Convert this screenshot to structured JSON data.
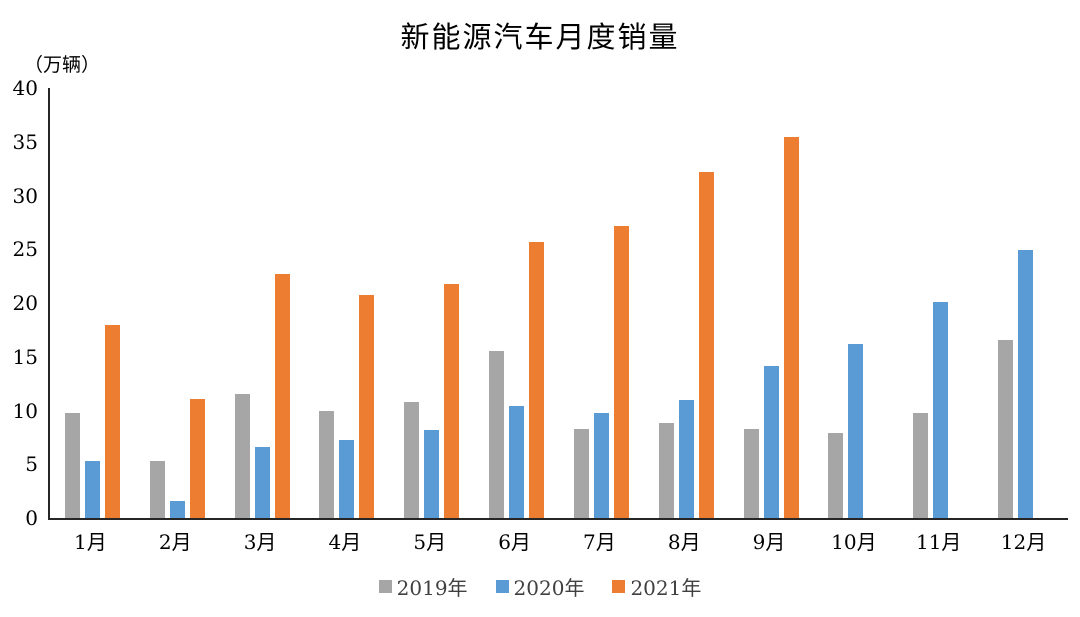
{
  "title": "新能源汽车月度销量",
  "y_axis": {
    "unit_label": "（万辆）",
    "ticks": [
      40,
      35,
      30,
      25,
      20,
      15,
      10,
      5,
      0
    ]
  },
  "colors": {
    "series_2019": "#A6A6A6",
    "series_2020": "#5B9BD5",
    "series_2021": "#ED7D31",
    "axis": "#262626",
    "background": "#FFFFFF"
  },
  "chart_data": {
    "type": "bar",
    "title": "新能源汽车月度销量",
    "ylabel": "（万辆）",
    "xlabel": "",
    "ylim": [
      0,
      40
    ],
    "ytick_step": 5,
    "yticks": [
      40,
      35,
      30,
      25,
      20,
      15,
      10,
      5,
      0
    ],
    "grid": false,
    "legend_position": "bottom",
    "categories": [
      "1月",
      "2月",
      "3月",
      "4月",
      "5月",
      "6月",
      "7月",
      "8月",
      "9月",
      "10月",
      "11月",
      "12月"
    ],
    "series": [
      {
        "name": "2019年",
        "color": "#A6A6A6",
        "values": [
          9.8,
          5.3,
          11.5,
          10.0,
          10.8,
          15.5,
          8.3,
          8.8,
          8.3,
          7.9,
          9.8,
          16.6
        ]
      },
      {
        "name": "2020年",
        "color": "#5B9BD5",
        "values": [
          5.3,
          1.6,
          6.6,
          7.3,
          8.2,
          10.4,
          9.8,
          11.0,
          14.1,
          16.2,
          20.1,
          24.9
        ]
      },
      {
        "name": "2021年",
        "color": "#ED7D31",
        "values": [
          18.0,
          11.1,
          22.7,
          20.7,
          21.8,
          25.7,
          27.2,
          32.2,
          35.4,
          null,
          null,
          null
        ]
      }
    ]
  }
}
